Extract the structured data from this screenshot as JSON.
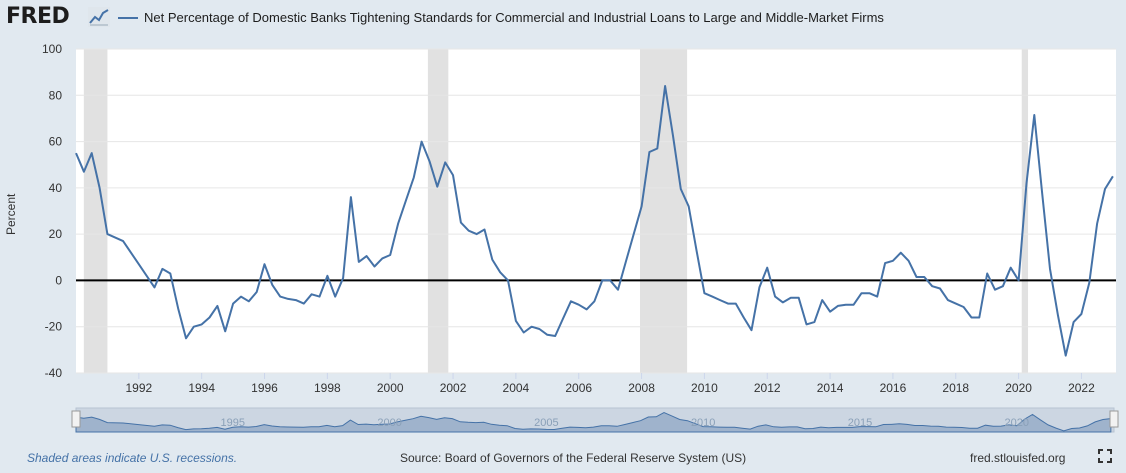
{
  "header": {
    "logo_text": "FRED",
    "logo_icon": "trend-line-icon",
    "legend_label": "Net Percentage of Domestic Banks Tightening Standards for Commercial and Industrial Loans to Large and Middle-Market Firms"
  },
  "footer": {
    "note": "Shaded areas indicate U.S. recessions.",
    "source": "Source: Board of Governors of the Federal Reserve System (US)",
    "url": "fred.stlouisfed.org",
    "fullscreen_icon": "fullscreen-icon"
  },
  "colors": {
    "series": "#4572a7",
    "recession": "#e1e1e1",
    "plot_bg": "#ffffff",
    "page_bg": "#e1e9f0",
    "zero_line": "#000000"
  },
  "navigator_ticks": [
    "1995",
    "2000",
    "2005",
    "2010",
    "2015",
    "2020"
  ],
  "chart_data": {
    "type": "line",
    "title": "Net Percentage of Domestic Banks Tightening Standards for Commercial and Industrial Loans to Large and Middle-Market Firms",
    "ylabel": "Percent",
    "xlabel": "",
    "ylim": [
      -40,
      100
    ],
    "xlim": [
      1990.0,
      2023.1
    ],
    "yticks": [
      -40,
      -20,
      0,
      20,
      40,
      60,
      80,
      100
    ],
    "xticks": [
      "1992",
      "1994",
      "1996",
      "1998",
      "2000",
      "2002",
      "2004",
      "2006",
      "2008",
      "2010",
      "2012",
      "2014",
      "2016",
      "2018",
      "2020",
      "2022"
    ],
    "grid": true,
    "recessions": [
      [
        1990.25,
        1991.0
      ],
      [
        2001.2,
        2001.85
      ],
      [
        2007.95,
        2009.45
      ],
      [
        2020.1,
        2020.3
      ]
    ],
    "series": [
      {
        "name": "Net Percentage of Domestic Banks Tightening Standards for Commercial and Industrial Loans to Large and Middle-Market Firms",
        "x": [
          1990.0,
          1990.25,
          1990.5,
          1990.75,
          1991.0,
          1991.5,
          1992.0,
          1992.5,
          1992.75,
          1993.0,
          1993.25,
          1993.5,
          1993.75,
          1994.0,
          1994.25,
          1994.5,
          1994.75,
          1995.0,
          1995.25,
          1995.5,
          1995.75,
          1996.0,
          1996.25,
          1996.5,
          1996.75,
          1997.0,
          1997.25,
          1997.5,
          1997.75,
          1998.0,
          1998.25,
          1998.5,
          1998.75,
          1999.0,
          1999.25,
          1999.5,
          1999.75,
          2000.0,
          2000.25,
          2000.5,
          2000.75,
          2001.0,
          2001.25,
          2001.5,
          2001.75,
          2002.0,
          2002.25,
          2002.5,
          2002.75,
          2003.0,
          2003.25,
          2003.5,
          2003.75,
          2004.0,
          2004.25,
          2004.5,
          2004.75,
          2005.0,
          2005.25,
          2005.5,
          2005.75,
          2006.0,
          2006.25,
          2006.5,
          2006.75,
          2007.0,
          2007.25,
          2007.5,
          2007.75,
          2008.0,
          2008.25,
          2008.5,
          2008.75,
          2009.0,
          2009.25,
          2009.5,
          2009.75,
          2010.0,
          2010.25,
          2010.5,
          2010.75,
          2011.0,
          2011.25,
          2011.5,
          2011.75,
          2012.0,
          2012.25,
          2012.5,
          2012.75,
          2013.0,
          2013.25,
          2013.5,
          2013.75,
          2014.0,
          2014.25,
          2014.5,
          2014.75,
          2015.0,
          2015.25,
          2015.5,
          2015.75,
          2016.0,
          2016.25,
          2016.5,
          2016.75,
          2017.0,
          2017.25,
          2017.5,
          2017.75,
          2018.0,
          2018.25,
          2018.5,
          2018.75,
          2019.0,
          2019.25,
          2019.5,
          2019.75,
          2020.0,
          2020.25,
          2020.5,
          2020.75,
          2021.0,
          2021.25,
          2021.5,
          2021.75,
          2022.0,
          2022.25,
          2022.5,
          2022.75,
          2023.0
        ],
        "values": [
          55,
          47,
          55,
          40,
          20,
          17,
          7,
          -3,
          5,
          3,
          -12,
          -25,
          -20,
          -19,
          -16,
          -11,
          -22,
          -10,
          -7,
          -9,
          -5,
          7,
          -2,
          -7,
          -8,
          -8.5,
          -10,
          -6,
          -7,
          2,
          -7,
          1,
          36,
          8,
          10.5,
          6,
          9.5,
          11,
          24.5,
          34.5,
          44.5,
          60,
          51.5,
          40.5,
          51,
          45.5,
          25,
          21.5,
          20,
          22,
          9,
          3.5,
          0,
          -17.5,
          -22.5,
          -20,
          -21,
          -23.5,
          -24,
          -16.5,
          -9,
          -10.5,
          -12.5,
          -9,
          0,
          0,
          -4,
          8,
          20,
          32,
          55.5,
          57,
          84,
          62.5,
          39.5,
          32,
          13,
          -5.5,
          -7,
          -8.5,
          -10,
          -10,
          -16,
          -21.5,
          -3,
          5.5,
          -7,
          -9.5,
          -7.5,
          -7.5,
          -19,
          -18,
          -8.5,
          -13.5,
          -11,
          -10.5,
          -10.5,
          -5.5,
          -5.5,
          -7,
          7.5,
          8.5,
          12,
          8.5,
          1.5,
          1.5,
          -2.5,
          -3.5,
          -8.5,
          -10,
          -11.5,
          -16,
          -16,
          3,
          -4,
          -2.5,
          5.5,
          0,
          42,
          71.5,
          37.5,
          5,
          -15,
          -32.5,
          -18,
          -14.5,
          -1,
          24.5,
          39.5,
          45
        ]
      }
    ]
  }
}
